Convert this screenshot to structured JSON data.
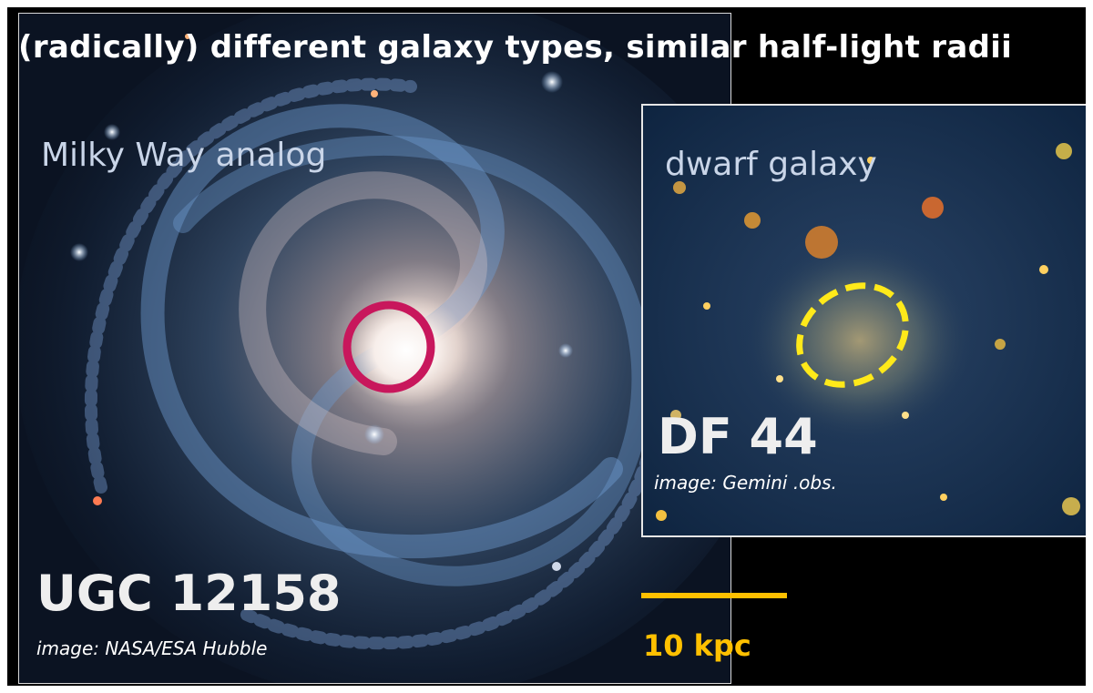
{
  "headline": "(radically) different galaxy types, similar half-light radii",
  "spiral": {
    "label": "Milky Way analog",
    "name": "UGC 12158",
    "credit": "image: NASA/ESA Hubble",
    "marker_color": "#c8175c"
  },
  "dwarf": {
    "label": "dwarf galaxy",
    "name": "DF 44",
    "credit": "image: Gemini .obs.",
    "marker_color": "#ffe91a"
  },
  "scale": {
    "label": "10 kpc",
    "color": "#ffc000"
  }
}
